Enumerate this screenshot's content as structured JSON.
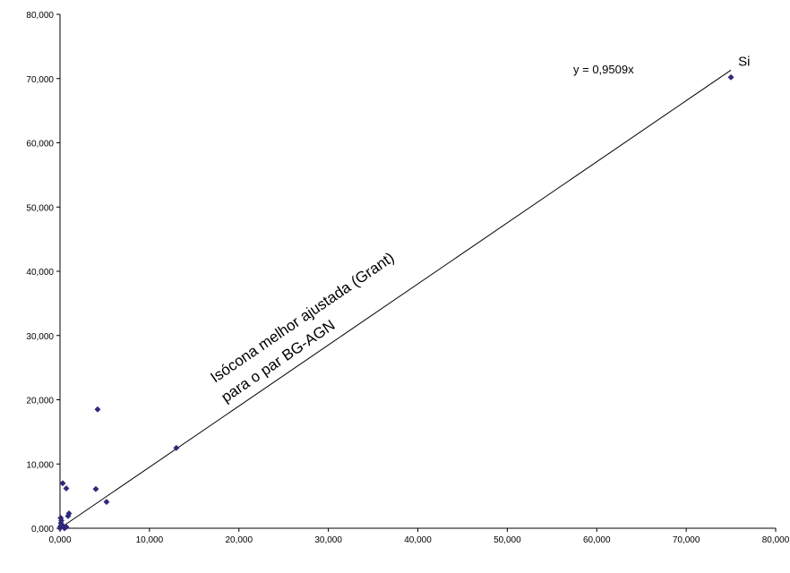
{
  "chart_data": {
    "type": "scatter",
    "title": "",
    "xlabel": "",
    "ylabel": "",
    "xlim": [
      0,
      80000
    ],
    "ylim": [
      0,
      80000
    ],
    "x_ticks": [
      "0,000",
      "10,000",
      "20,000",
      "30,000",
      "40,000",
      "50,000",
      "60,000",
      "70,000",
      "80,000"
    ],
    "y_ticks": [
      "0,000",
      "10,000",
      "20,000",
      "30,000",
      "40,000",
      "50,000",
      "60,000",
      "70,000",
      "80,000"
    ],
    "grid": false,
    "legend": "none",
    "series": [
      {
        "color": "#2e2a7a",
        "marker": "diamond",
        "points": [
          {
            "x": 0,
            "y": 0
          },
          {
            "x": 50,
            "y": 300
          },
          {
            "x": 100,
            "y": 800
          },
          {
            "x": 150,
            "y": 1200
          },
          {
            "x": 80,
            "y": 1600
          },
          {
            "x": 300,
            "y": 400
          },
          {
            "x": 500,
            "y": 0
          },
          {
            "x": 700,
            "y": 200
          },
          {
            "x": 900,
            "y": 1900
          },
          {
            "x": 1000,
            "y": 2300
          },
          {
            "x": 300,
            "y": 7000
          },
          {
            "x": 700,
            "y": 6200
          },
          {
            "x": 4000,
            "y": 6100
          },
          {
            "x": 4200,
            "y": 18500
          },
          {
            "x": 5200,
            "y": 4100
          },
          {
            "x": 13000,
            "y": 12500
          },
          {
            "x": 75000,
            "y": 70200
          }
        ]
      }
    ],
    "trendline": {
      "slope": 0.9509,
      "x_range": [
        0,
        75000
      ],
      "equation_label": "y = 0,9509x",
      "line_label_1": "Isócona melhor ajustada (Grant)",
      "line_label_2": "para o par BG-AGN"
    },
    "point_annotation": {
      "text": "Si",
      "x": 75000,
      "y": 70200
    },
    "colors": {
      "axis": "#000000",
      "marker": "#2e2a7a",
      "trendline": "#000000"
    }
  }
}
